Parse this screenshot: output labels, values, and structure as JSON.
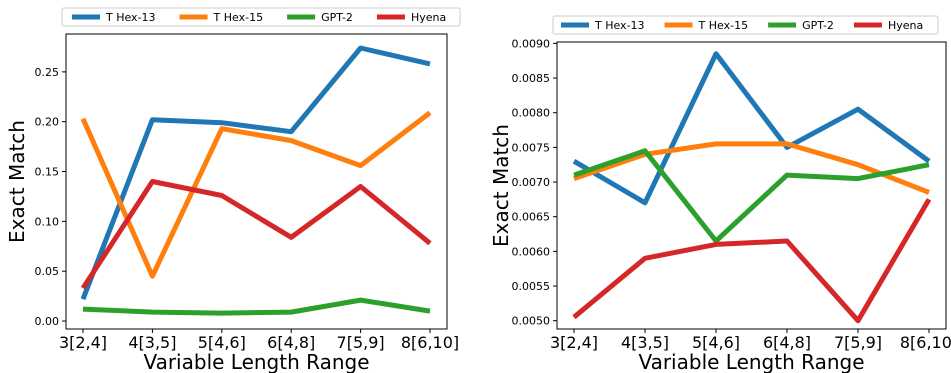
{
  "chart_data": [
    {
      "type": "line",
      "categories": [
        "3[2,4]",
        "4[3,5]",
        "5[4,6]",
        "6[4,8]",
        "7[5,9]",
        "8[6,10]"
      ],
      "xlabel": "Variable Length Range",
      "ylabel": "Exact Match",
      "ylim": [
        -0.008,
        0.288
      ],
      "yticks": [
        0.0,
        0.05,
        0.1,
        0.15,
        0.2,
        0.25
      ],
      "ytick_labels": [
        "0.00",
        "0.05",
        "0.10",
        "0.15",
        "0.20",
        "0.25"
      ],
      "grid": false,
      "legend_position": "top",
      "series": [
        {
          "name": "T Hex-13",
          "color": "#1f77b4",
          "values": [
            0.022,
            0.202,
            0.199,
            0.19,
            0.274,
            0.258
          ]
        },
        {
          "name": "T Hex-15",
          "color": "#ff7f0e",
          "values": [
            0.203,
            0.045,
            0.193,
            0.181,
            0.156,
            0.209
          ]
        },
        {
          "name": "GPT-2",
          "color": "#2ca02c",
          "values": [
            0.012,
            0.009,
            0.008,
            0.009,
            0.021,
            0.01
          ]
        },
        {
          "name": "Hyena",
          "color": "#d62728",
          "values": [
            0.033,
            0.14,
            0.126,
            0.084,
            0.135,
            0.078
          ]
        }
      ]
    },
    {
      "type": "line",
      "categories": [
        "3[2,4]",
        "4[3,5]",
        "5[4,6]",
        "6[4,8]",
        "7[5,9]",
        "8[6,10]"
      ],
      "xlabel": "Variable Length Range",
      "ylabel": "Exact Match",
      "ylim": [
        0.00488,
        0.00902
      ],
      "yticks": [
        0.005,
        0.0055,
        0.006,
        0.0065,
        0.007,
        0.0075,
        0.008,
        0.0085,
        0.009
      ],
      "ytick_labels": [
        "0.0050",
        "0.0055",
        "0.0060",
        "0.0065",
        "0.0070",
        "0.0075",
        "0.0080",
        "0.0085",
        "0.0090"
      ],
      "grid": false,
      "legend_position": "top",
      "series": [
        {
          "name": "T Hex-13",
          "color": "#1f77b4",
          "values": [
            0.0073,
            0.0067,
            0.00885,
            0.0075,
            0.00805,
            0.0073
          ]
        },
        {
          "name": "T Hex-15",
          "color": "#ff7f0e",
          "values": [
            0.00705,
            0.0074,
            0.00755,
            0.00755,
            0.00725,
            0.00685
          ]
        },
        {
          "name": "GPT-2",
          "color": "#2ca02c",
          "values": [
            0.0071,
            0.00745,
            0.00615,
            0.0071,
            0.00705,
            0.00725
          ]
        },
        {
          "name": "Hyena",
          "color": "#d62728",
          "values": [
            0.00505,
            0.0059,
            0.0061,
            0.00615,
            0.005,
            0.00675
          ]
        }
      ]
    }
  ]
}
